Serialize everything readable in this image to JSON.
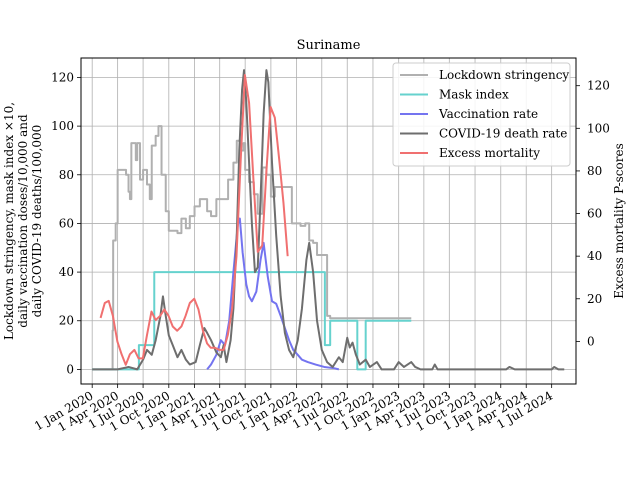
{
  "chart_data": {
    "type": "line",
    "title": "Suriname",
    "ylabel_left": [
      "Lockdown stringency, mask index ×10,",
      "daily vaccination doses/10,000 and",
      "daily COVID-19 deaths/100,000"
    ],
    "ylabel_right": "Excess mortality P-scores",
    "x_ticks": [
      "1 Jan 2020",
      "1 Apr 2020",
      "1 Jul 2020",
      "1 Oct 2020",
      "1 Jan 2021",
      "1 Apr 2021",
      "1 Jul 2021",
      "1 Oct 2021",
      "1 Jan 2022",
      "1 Apr 2022",
      "1 Jul 2022",
      "1 Oct 2022",
      "1 Jan 2023",
      "1 Apr 2023",
      "1 Jul 2023",
      "1 Oct 2023",
      "1 Jan 2024",
      "1 Apr 2024",
      "1 Jul 2024"
    ],
    "x_range": [
      "2019-11-22",
      "2024-09-26"
    ],
    "ylim_left": [
      -6,
      128
    ],
    "ylim_right": [
      -20,
      133
    ],
    "yticks_left": [
      0,
      20,
      40,
      60,
      80,
      100,
      120
    ],
    "yticks_right": [
      0,
      20,
      40,
      60,
      80,
      100,
      120
    ],
    "grid": true,
    "legend_position": "upper right",
    "series": [
      {
        "name": "Lockdown stringency",
        "axis": "left",
        "color": "#b0b0b0",
        "step": true,
        "points": [
          [
            "2020-01-01",
            0
          ],
          [
            "2020-03-12",
            0
          ],
          [
            "2020-03-14",
            16
          ],
          [
            "2020-03-16",
            53
          ],
          [
            "2020-03-25",
            60
          ],
          [
            "2020-04-01",
            82
          ],
          [
            "2020-05-01",
            80
          ],
          [
            "2020-05-10",
            73
          ],
          [
            "2020-05-15",
            70
          ],
          [
            "2020-05-20",
            93
          ],
          [
            "2020-06-05",
            86
          ],
          [
            "2020-06-10",
            93
          ],
          [
            "2020-06-20",
            78
          ],
          [
            "2020-07-01",
            82
          ],
          [
            "2020-07-15",
            76
          ],
          [
            "2020-07-25",
            70
          ],
          [
            "2020-08-01",
            92
          ],
          [
            "2020-08-15",
            96
          ],
          [
            "2020-08-25",
            100
          ],
          [
            "2020-09-05",
            80
          ],
          [
            "2020-09-20",
            65
          ],
          [
            "2020-10-01",
            57
          ],
          [
            "2020-11-01",
            56
          ],
          [
            "2020-11-15",
            62
          ],
          [
            "2020-12-01",
            58
          ],
          [
            "2020-12-15",
            63
          ],
          [
            "2021-01-01",
            67
          ],
          [
            "2021-01-20",
            70
          ],
          [
            "2021-02-15",
            65
          ],
          [
            "2021-03-01",
            63
          ],
          [
            "2021-03-20",
            70
          ],
          [
            "2021-04-15",
            70
          ],
          [
            "2021-05-01",
            78
          ],
          [
            "2021-05-20",
            85
          ],
          [
            "2021-06-01",
            94
          ],
          [
            "2021-06-15",
            90
          ],
          [
            "2021-06-25",
            93
          ],
          [
            "2021-07-01",
            82
          ],
          [
            "2021-07-15",
            77
          ],
          [
            "2021-08-01",
            72
          ],
          [
            "2021-08-15",
            64
          ],
          [
            "2021-09-01",
            83
          ],
          [
            "2021-09-15",
            80
          ],
          [
            "2021-10-01",
            71
          ],
          [
            "2021-10-15",
            75
          ],
          [
            "2021-11-01",
            75
          ],
          [
            "2021-12-15",
            60
          ],
          [
            "2022-01-15",
            59
          ],
          [
            "2022-02-01",
            60
          ],
          [
            "2022-02-15",
            53
          ],
          [
            "2022-03-01",
            52
          ],
          [
            "2022-03-15",
            47
          ],
          [
            "2022-04-20",
            22
          ],
          [
            "2022-05-01",
            21
          ],
          [
            "2023-02-15",
            21
          ]
        ]
      },
      {
        "name": "Mask index",
        "axis": "left",
        "color": "#66d2ce",
        "step": true,
        "points": [
          [
            "2020-01-01",
            0
          ],
          [
            "2020-06-15",
            0
          ],
          [
            "2020-06-16",
            10
          ],
          [
            "2020-08-08",
            10
          ],
          [
            "2020-08-10",
            40
          ],
          [
            "2022-04-11",
            40
          ],
          [
            "2022-04-12",
            10
          ],
          [
            "2022-05-01",
            20
          ],
          [
            "2022-08-05",
            20
          ],
          [
            "2022-08-06",
            0
          ],
          [
            "2022-09-01",
            0
          ],
          [
            "2022-09-05",
            20
          ],
          [
            "2023-02-15",
            20
          ]
        ]
      },
      {
        "name": "Vaccination rate",
        "axis": "left",
        "color": "#7474f0",
        "step": false,
        "points": [
          [
            "2021-02-15",
            0
          ],
          [
            "2021-03-01",
            2
          ],
          [
            "2021-03-20",
            6
          ],
          [
            "2021-04-05",
            12
          ],
          [
            "2021-04-20",
            10
          ],
          [
            "2021-05-05",
            20
          ],
          [
            "2021-05-20",
            40
          ],
          [
            "2021-06-05",
            60
          ],
          [
            "2021-06-12",
            62
          ],
          [
            "2021-06-22",
            48
          ],
          [
            "2021-07-05",
            35
          ],
          [
            "2021-07-15",
            30
          ],
          [
            "2021-07-25",
            28
          ],
          [
            "2021-08-10",
            32
          ],
          [
            "2021-08-25",
            45
          ],
          [
            "2021-09-05",
            52
          ],
          [
            "2021-09-20",
            38
          ],
          [
            "2021-10-05",
            28
          ],
          [
            "2021-10-20",
            27
          ],
          [
            "2021-11-05",
            22
          ],
          [
            "2021-11-20",
            17
          ],
          [
            "2021-12-05",
            12
          ],
          [
            "2021-12-20",
            8
          ],
          [
            "2022-01-05",
            6
          ],
          [
            "2022-01-20",
            4
          ],
          [
            "2022-02-10",
            3
          ],
          [
            "2022-03-10",
            2
          ],
          [
            "2022-04-10",
            1
          ],
          [
            "2022-05-15",
            0.5
          ],
          [
            "2022-06-01",
            0
          ]
        ]
      },
      {
        "name": "COVID-19 death rate",
        "axis": "left",
        "color": "#6e6e6e",
        "step": false,
        "points": [
          [
            "2020-01-01",
            0
          ],
          [
            "2020-04-01",
            0
          ],
          [
            "2020-05-10",
            1
          ],
          [
            "2020-06-10",
            0
          ],
          [
            "2020-07-01",
            4
          ],
          [
            "2020-07-15",
            8
          ],
          [
            "2020-08-01",
            6
          ],
          [
            "2020-08-15",
            12
          ],
          [
            "2020-09-01",
            22
          ],
          [
            "2020-09-10",
            30
          ],
          [
            "2020-09-20",
            22
          ],
          [
            "2020-10-01",
            14
          ],
          [
            "2020-10-15",
            10
          ],
          [
            "2020-11-01",
            5
          ],
          [
            "2020-11-15",
            8
          ],
          [
            "2020-12-01",
            4
          ],
          [
            "2020-12-15",
            2
          ],
          [
            "2021-01-05",
            3
          ],
          [
            "2021-01-20",
            10
          ],
          [
            "2021-02-05",
            17
          ],
          [
            "2021-02-15",
            15
          ],
          [
            "2021-03-01",
            12
          ],
          [
            "2021-03-20",
            7
          ],
          [
            "2021-04-05",
            5
          ],
          [
            "2021-04-15",
            10
          ],
          [
            "2021-04-25",
            3
          ],
          [
            "2021-05-10",
            12
          ],
          [
            "2021-05-20",
            25
          ],
          [
            "2021-06-01",
            55
          ],
          [
            "2021-06-10",
            90
          ],
          [
            "2021-06-20",
            115
          ],
          [
            "2021-06-27",
            123
          ],
          [
            "2021-07-05",
            110
          ],
          [
            "2021-07-15",
            85
          ],
          [
            "2021-07-25",
            60
          ],
          [
            "2021-08-05",
            40
          ],
          [
            "2021-08-15",
            42
          ],
          [
            "2021-08-25",
            70
          ],
          [
            "2021-09-05",
            105
          ],
          [
            "2021-09-15",
            123
          ],
          [
            "2021-09-22",
            118
          ],
          [
            "2021-10-05",
            85
          ],
          [
            "2021-10-20",
            55
          ],
          [
            "2021-11-05",
            30
          ],
          [
            "2021-11-20",
            15
          ],
          [
            "2021-12-05",
            8
          ],
          [
            "2021-12-20",
            5
          ],
          [
            "2022-01-05",
            12
          ],
          [
            "2022-01-20",
            25
          ],
          [
            "2022-02-05",
            45
          ],
          [
            "2022-02-15",
            52
          ],
          [
            "2022-03-01",
            40
          ],
          [
            "2022-03-15",
            20
          ],
          [
            "2022-04-01",
            8
          ],
          [
            "2022-04-20",
            3
          ],
          [
            "2022-05-10",
            1
          ],
          [
            "2022-06-01",
            5
          ],
          [
            "2022-06-15",
            3
          ],
          [
            "2022-07-01",
            13
          ],
          [
            "2022-07-10",
            9
          ],
          [
            "2022-07-20",
            11
          ],
          [
            "2022-08-01",
            6
          ],
          [
            "2022-08-15",
            2
          ],
          [
            "2022-09-05",
            4
          ],
          [
            "2022-09-20",
            1
          ],
          [
            "2022-10-15",
            3
          ],
          [
            "2022-11-01",
            0
          ],
          [
            "2022-12-15",
            0
          ],
          [
            "2023-01-01",
            3
          ],
          [
            "2023-01-20",
            1
          ],
          [
            "2023-02-15",
            3
          ],
          [
            "2023-03-01",
            1
          ],
          [
            "2023-03-20",
            0
          ],
          [
            "2023-05-01",
            0
          ],
          [
            "2023-05-10",
            2
          ],
          [
            "2023-05-20",
            0
          ],
          [
            "2024-01-20",
            0
          ],
          [
            "2024-02-01",
            1
          ],
          [
            "2024-02-20",
            0
          ],
          [
            "2024-07-01",
            0
          ],
          [
            "2024-07-10",
            1
          ],
          [
            "2024-07-25",
            0
          ],
          [
            "2024-08-15",
            0
          ]
        ]
      },
      {
        "name": "Excess mortality",
        "axis": "right",
        "color": "#f07070",
        "step": false,
        "points": [
          [
            "2020-01-31",
            11
          ],
          [
            "2020-02-15",
            18
          ],
          [
            "2020-02-29",
            19
          ],
          [
            "2020-03-15",
            12
          ],
          [
            "2020-03-31",
            0
          ],
          [
            "2020-04-15",
            -6
          ],
          [
            "2020-04-30",
            -11
          ],
          [
            "2020-05-15",
            -6
          ],
          [
            "2020-05-31",
            -4
          ],
          [
            "2020-06-15",
            -8
          ],
          [
            "2020-06-30",
            -8
          ],
          [
            "2020-07-15",
            3
          ],
          [
            "2020-07-31",
            14
          ],
          [
            "2020-08-15",
            10
          ],
          [
            "2020-08-31",
            12
          ],
          [
            "2020-09-15",
            15
          ],
          [
            "2020-09-30",
            12
          ],
          [
            "2020-10-15",
            7
          ],
          [
            "2020-10-31",
            5
          ],
          [
            "2020-11-15",
            7
          ],
          [
            "2020-11-30",
            12
          ],
          [
            "2020-12-15",
            18
          ],
          [
            "2020-12-31",
            20
          ],
          [
            "2021-01-15",
            15
          ],
          [
            "2021-01-31",
            5
          ],
          [
            "2021-02-15",
            -1
          ],
          [
            "2021-02-28",
            -3
          ],
          [
            "2021-03-15",
            -3
          ],
          [
            "2021-03-31",
            -4
          ],
          [
            "2021-04-15",
            -4
          ],
          [
            "2021-04-30",
            3
          ],
          [
            "2021-05-15",
            15
          ],
          [
            "2021-05-31",
            40
          ],
          [
            "2021-06-15",
            85
          ],
          [
            "2021-06-30",
            125
          ],
          [
            "2021-07-15",
            112
          ],
          [
            "2021-07-31",
            75
          ],
          [
            "2021-08-15",
            42
          ],
          [
            "2021-08-31",
            45
          ],
          [
            "2021-09-15",
            80
          ],
          [
            "2021-09-30",
            110
          ],
          [
            "2021-10-15",
            105
          ],
          [
            "2021-10-31",
            85
          ],
          [
            "2021-11-15",
            65
          ],
          [
            "2021-11-30",
            40
          ]
        ]
      }
    ]
  }
}
